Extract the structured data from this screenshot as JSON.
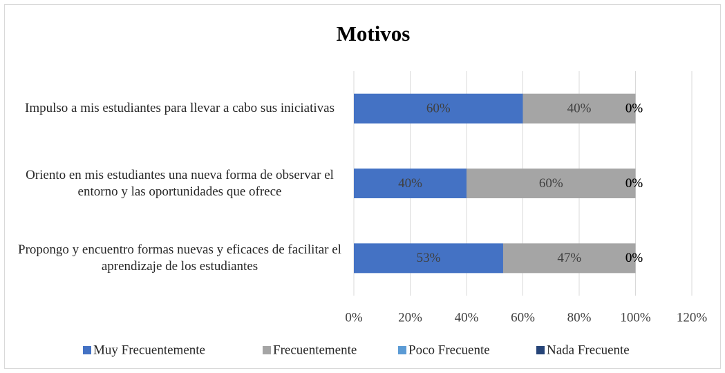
{
  "chart_data": {
    "type": "stacked-barh",
    "title": "Motivos",
    "categories": [
      "Impulso a mis estudiantes para llevar a cabo sus iniciativas",
      "Oriento en mis estudiantes una nueva forma de observar el entorno y las oportunidades que ofrece",
      "Propongo y encuentro formas nuevas y eficaces de facilitar el aprendizaje de los estudiantes"
    ],
    "series": [
      {
        "name": "Muy Frecuentemente",
        "color": "#4472c4",
        "values": [
          60,
          40,
          53
        ],
        "value_labels": [
          "60%",
          "40%",
          "53%"
        ]
      },
      {
        "name": "Frecuentemente",
        "color": "#a5a5a5",
        "values": [
          40,
          60,
          47
        ],
        "value_labels": [
          "40%",
          "60%",
          "47%"
        ]
      },
      {
        "name": "Poco Frecuente",
        "color": "#5b9bd5",
        "values": [
          0,
          0,
          0
        ],
        "value_labels": [
          "0%",
          "0%",
          "0%"
        ]
      },
      {
        "name": "Nada Frecuente",
        "color": "#264478",
        "values": [
          0,
          0,
          0
        ],
        "value_labels": [
          "0%",
          "0%",
          "0%"
        ]
      }
    ],
    "xlim": [
      0,
      120
    ],
    "xticks": [
      {
        "value": 0,
        "label": "0%"
      },
      {
        "value": 20,
        "label": "20%"
      },
      {
        "value": 40,
        "label": "40%"
      },
      {
        "value": 60,
        "label": "60%"
      },
      {
        "value": 80,
        "label": "80%"
      },
      {
        "value": 100,
        "label": "100%"
      },
      {
        "value": 120,
        "label": "120%"
      }
    ],
    "grid": true,
    "legend": "bottom"
  }
}
